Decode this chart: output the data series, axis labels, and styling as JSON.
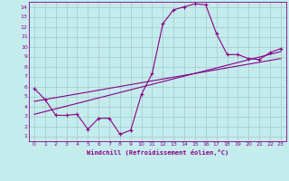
{
  "title": "",
  "xlabel": "Windchill (Refroidissement éolien,°C)",
  "background_color": "#c5eced",
  "grid_color": "#a8cdd0",
  "line_color": "#880088",
  "xlim": [
    -0.5,
    23.5
  ],
  "ylim": [
    0.5,
    14.5
  ],
  "xticks": [
    0,
    1,
    2,
    3,
    4,
    5,
    6,
    7,
    8,
    9,
    10,
    11,
    12,
    13,
    14,
    15,
    16,
    17,
    18,
    19,
    20,
    21,
    22,
    23
  ],
  "yticks": [
    1,
    2,
    3,
    4,
    5,
    6,
    7,
    8,
    9,
    10,
    11,
    12,
    13,
    14
  ],
  "line1_x": [
    0,
    1,
    2,
    3,
    4,
    5,
    6,
    7,
    8,
    9,
    10,
    11,
    12,
    13,
    14,
    15,
    16,
    17,
    18,
    19,
    20,
    21,
    22,
    23
  ],
  "line1_y": [
    5.8,
    4.7,
    3.1,
    3.1,
    3.2,
    1.7,
    2.8,
    2.8,
    1.2,
    1.6,
    5.2,
    7.3,
    12.3,
    13.7,
    14.0,
    14.3,
    14.2,
    11.3,
    9.2,
    9.2,
    8.8,
    8.7,
    9.4,
    9.8
  ],
  "line2_x": [
    0,
    23
  ],
  "line2_y": [
    3.2,
    9.5
  ],
  "line3_x": [
    0,
    23
  ],
  "line3_y": [
    4.5,
    8.8
  ]
}
